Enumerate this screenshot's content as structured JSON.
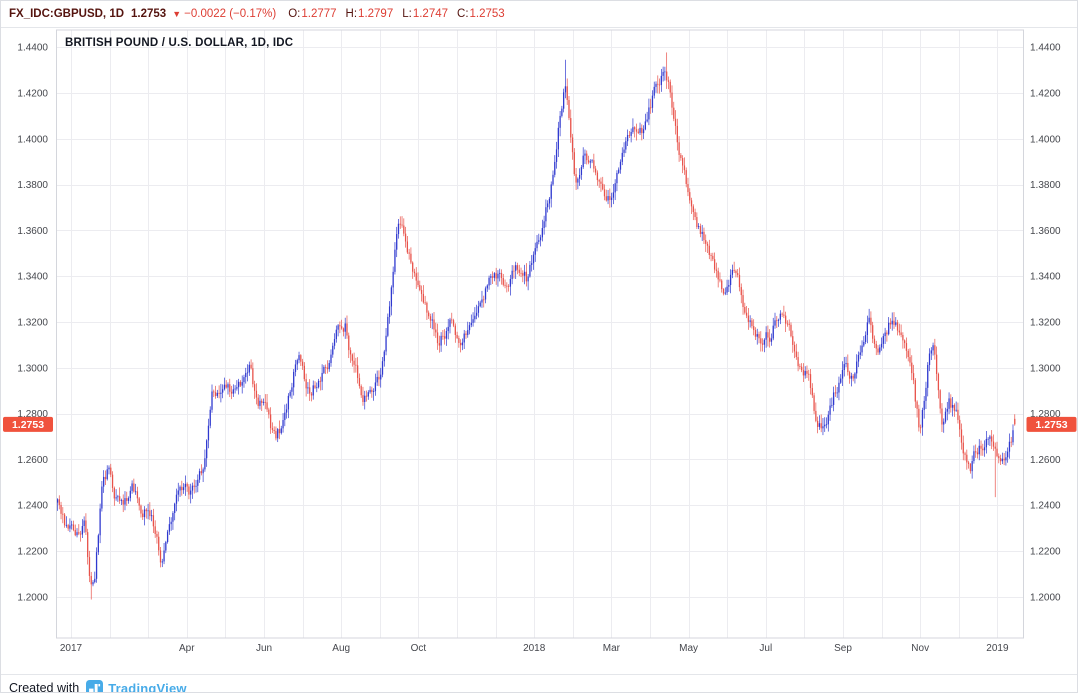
{
  "colors": {
    "up_candle": "#2f39cf",
    "down_candle": "#e8524a",
    "grid": "#ececf0",
    "plot_border": "#d4d6dc",
    "axis_text": "#45474d",
    "last_price_tag_bg": "#f0523d",
    "last_price_tag_text": "#ffffff",
    "title_text": "#131722",
    "header_symbol": "#55140f",
    "value_red": "#dd3d33",
    "footer_text": "#131722",
    "brand_blue": "#47abe8"
  },
  "header": {
    "symbol": "FX_IDC:GBPUSD, 1D",
    "price": "1.2753",
    "direction_icon": "▼",
    "change": "−0.0022 (−0.17%)",
    "ohlc": [
      {
        "label": "O:",
        "value": "1.2777"
      },
      {
        "label": "H:",
        "value": "1.2797"
      },
      {
        "label": "L:",
        "value": "1.2747"
      },
      {
        "label": "C:",
        "value": "1.2753"
      }
    ]
  },
  "chart_data": {
    "type": "candlestick",
    "title": "BRITISH POUND / U.S. DOLLAR, 1D, IDC",
    "instrument": "BRITISH POUND / U.S. DOLLAR",
    "interval": "1D",
    "feed": "IDC",
    "last_price": 1.2753,
    "last_price_label": "1.2753",
    "last_candle": {
      "open": 1.2777,
      "high": 1.2797,
      "low": 1.2747,
      "close": 1.2753
    },
    "y_axis": {
      "min": 1.182,
      "max": 1.4475,
      "decimals": 4,
      "tick_labels": [
        "1.2000",
        "1.2200",
        "1.2400",
        "1.2600",
        "1.2800",
        "1.3000",
        "1.3200",
        "1.3400",
        "1.3600",
        "1.3800",
        "1.4000",
        "1.4200",
        "1.4400"
      ]
    },
    "x_axis": {
      "month_index_origin": "Jan 2017",
      "domain_months": [
        -0.35,
        24.45
      ],
      "gridline_every_month": 1,
      "labels": [
        {
          "m": 0,
          "label": "2017"
        },
        {
          "m": 3,
          "label": "Apr"
        },
        {
          "m": 5,
          "label": "Jun"
        },
        {
          "m": 7,
          "label": "Aug"
        },
        {
          "m": 9,
          "label": "Oct"
        },
        {
          "m": 12,
          "label": "2018"
        },
        {
          "m": 14,
          "label": "Mar"
        },
        {
          "m": 16,
          "label": "May"
        },
        {
          "m": 18,
          "label": "Jul"
        },
        {
          "m": 20,
          "label": "Sep"
        },
        {
          "m": 22,
          "label": "Nov"
        },
        {
          "m": 24,
          "label": "2019"
        }
      ]
    },
    "approx_candle_count": 540,
    "price_path_keypoints": [
      [
        -0.35,
        1.24
      ],
      [
        -0.15,
        1.228
      ],
      [
        0.1,
        1.224
      ],
      [
        0.35,
        1.233
      ],
      [
        0.5,
        1.206
      ],
      [
        0.62,
        1.212
      ],
      [
        0.8,
        1.25
      ],
      [
        1.0,
        1.258
      ],
      [
        1.15,
        1.246
      ],
      [
        1.4,
        1.243
      ],
      [
        1.6,
        1.25
      ],
      [
        1.8,
        1.24
      ],
      [
        2.1,
        1.238
      ],
      [
        2.35,
        1.216
      ],
      [
        2.55,
        1.235
      ],
      [
        2.8,
        1.249
      ],
      [
        3.1,
        1.246
      ],
      [
        3.45,
        1.256
      ],
      [
        3.65,
        1.284
      ],
      [
        3.9,
        1.29
      ],
      [
        4.2,
        1.289
      ],
      [
        4.5,
        1.293
      ],
      [
        4.65,
        1.301
      ],
      [
        4.85,
        1.281
      ],
      [
        5.05,
        1.288
      ],
      [
        5.3,
        1.268
      ],
      [
        5.55,
        1.276
      ],
      [
        5.8,
        1.298
      ],
      [
        6.0,
        1.302
      ],
      [
        6.2,
        1.288
      ],
      [
        6.45,
        1.298
      ],
      [
        6.7,
        1.306
      ],
      [
        6.95,
        1.32
      ],
      [
        7.1,
        1.322
      ],
      [
        7.3,
        1.301
      ],
      [
        7.55,
        1.288
      ],
      [
        7.8,
        1.293
      ],
      [
        8.0,
        1.296
      ],
      [
        8.2,
        1.32
      ],
      [
        8.45,
        1.358
      ],
      [
        8.6,
        1.359
      ],
      [
        8.75,
        1.349
      ],
      [
        8.95,
        1.34
      ],
      [
        9.15,
        1.326
      ],
      [
        9.35,
        1.32
      ],
      [
        9.5,
        1.308
      ],
      [
        9.7,
        1.316
      ],
      [
        9.85,
        1.326
      ],
      [
        10.05,
        1.308
      ],
      [
        10.25,
        1.315
      ],
      [
        10.5,
        1.322
      ],
      [
        10.75,
        1.333
      ],
      [
        10.9,
        1.344
      ],
      [
        11.1,
        1.339
      ],
      [
        11.3,
        1.333
      ],
      [
        11.55,
        1.343
      ],
      [
        11.8,
        1.338
      ],
      [
        12.0,
        1.352
      ],
      [
        12.2,
        1.365
      ],
      [
        12.45,
        1.385
      ],
      [
        12.65,
        1.414
      ],
      [
        12.82,
        1.43
      ],
      [
        12.95,
        1.408
      ],
      [
        13.08,
        1.385
      ],
      [
        13.3,
        1.397
      ],
      [
        13.5,
        1.39
      ],
      [
        13.7,
        1.378
      ],
      [
        13.95,
        1.374
      ],
      [
        14.15,
        1.385
      ],
      [
        14.4,
        1.394
      ],
      [
        14.65,
        1.4
      ],
      [
        14.85,
        1.403
      ],
      [
        15.1,
        1.42
      ],
      [
        15.35,
        1.431
      ],
      [
        15.55,
        1.418
      ],
      [
        15.8,
        1.392
      ],
      [
        16.0,
        1.376
      ],
      [
        16.2,
        1.358
      ],
      [
        16.45,
        1.352
      ],
      [
        16.7,
        1.343
      ],
      [
        16.9,
        1.33
      ],
      [
        17.15,
        1.34
      ],
      [
        17.4,
        1.327
      ],
      [
        17.65,
        1.32
      ],
      [
        17.9,
        1.31
      ],
      [
        18.1,
        1.313
      ],
      [
        18.35,
        1.327
      ],
      [
        18.6,
        1.313
      ],
      [
        18.85,
        1.302
      ],
      [
        19.1,
        1.298
      ],
      [
        19.35,
        1.272
      ],
      [
        19.6,
        1.276
      ],
      [
        19.85,
        1.292
      ],
      [
        20.05,
        1.302
      ],
      [
        20.3,
        1.295
      ],
      [
        20.55,
        1.316
      ],
      [
        20.68,
        1.327
      ],
      [
        20.85,
        1.306
      ],
      [
        21.05,
        1.312
      ],
      [
        21.3,
        1.323
      ],
      [
        21.55,
        1.312
      ],
      [
        21.8,
        1.296
      ],
      [
        21.98,
        1.272
      ],
      [
        22.2,
        1.303
      ],
      [
        22.35,
        1.311
      ],
      [
        22.55,
        1.278
      ],
      [
        22.75,
        1.287
      ],
      [
        22.95,
        1.278
      ],
      [
        23.15,
        1.262
      ],
      [
        23.3,
        1.252
      ],
      [
        23.5,
        1.263
      ],
      [
        23.7,
        1.268
      ],
      [
        23.93,
        1.262
      ],
      [
        24.1,
        1.257
      ],
      [
        24.3,
        1.267
      ],
      [
        24.45,
        1.2753
      ]
    ],
    "spike_highs": [
      [
        8.55,
        1.3657
      ],
      [
        12.82,
        1.4345
      ],
      [
        15.42,
        1.4377
      ]
    ],
    "spike_lows": [
      [
        0.52,
        1.1988
      ],
      [
        23.93,
        1.2435
      ]
    ]
  },
  "footer": {
    "created_with": "Created with",
    "brand": "TradingView"
  }
}
